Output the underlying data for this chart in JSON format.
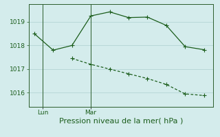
{
  "line1_x": [
    0,
    1,
    2,
    3,
    4,
    5,
    6,
    7,
    8,
    9
  ],
  "line1_y": [
    1018.5,
    1017.8,
    1018.0,
    1019.25,
    1019.42,
    1019.18,
    1019.2,
    1018.85,
    1017.95,
    1017.82
  ],
  "line2_x": [
    2,
    3,
    4,
    5,
    6,
    7,
    8,
    9
  ],
  "line2_y": [
    1017.45,
    1017.2,
    1017.0,
    1016.8,
    1016.6,
    1016.35,
    1015.95,
    1015.88
  ],
  "line_color": "#1a5c1a",
  "bg_color": "#d4ecec",
  "grid_color": "#b8d8d8",
  "xlabel": "Pression niveau de la mer( hPa )",
  "xlabel_fontsize": 8,
  "yticks": [
    1016,
    1017,
    1018,
    1019
  ],
  "ylim": [
    1015.4,
    1019.75
  ],
  "xlim": [
    -0.3,
    9.5
  ],
  "lun_x": 0.45,
  "mar_x": 3.0,
  "tick_fontsize": 6.5,
  "markersize": 2.8,
  "linewidth": 0.9,
  "spine_color": "#2a5c2a"
}
